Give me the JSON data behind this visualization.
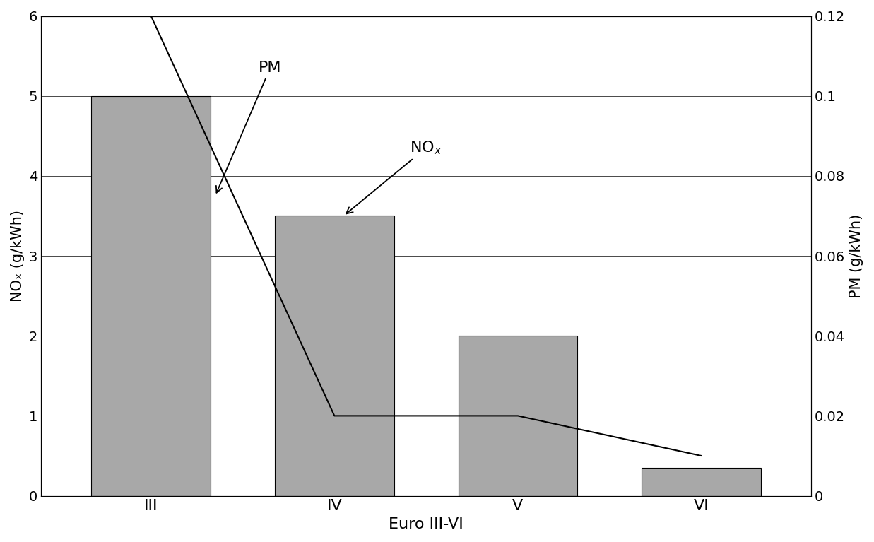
{
  "categories": [
    "III",
    "IV",
    "V",
    "VI"
  ],
  "nox_values": [
    5.0,
    3.5,
    2.0,
    0.35
  ],
  "pm_values": [
    0.12,
    0.02,
    0.02,
    0.01
  ],
  "bar_color": "#a8a8a8",
  "line_color": "#000000",
  "nox_ylim": [
    0,
    6
  ],
  "pm_ylim": [
    0,
    0.12
  ],
  "nox_yticks": [
    0,
    1,
    2,
    3,
    4,
    5,
    6
  ],
  "pm_ytick_vals": [
    0,
    0.02,
    0.04,
    0.06,
    0.08,
    0.1,
    0.12
  ],
  "pm_ytick_labels": [
    "0",
    "0.02",
    "0.04",
    "0.06",
    "0.08",
    "0.1",
    "0.12"
  ],
  "xlabel": "Euro III-VI",
  "ylabel_left": "NOₓ (g/kWh)",
  "ylabel_right": "PM (g/kWh)",
  "figsize": [
    12.37,
    7.67
  ],
  "dpi": 100
}
